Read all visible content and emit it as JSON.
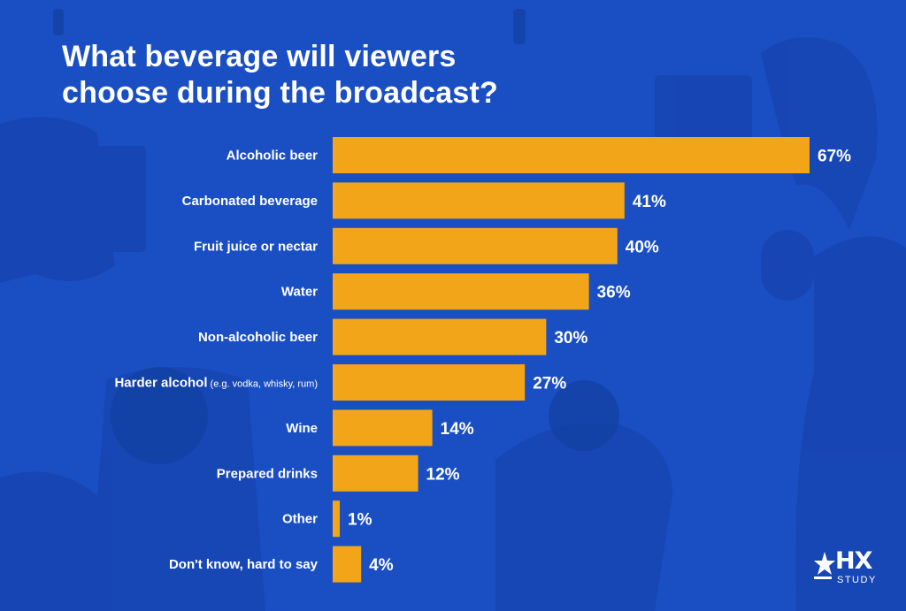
{
  "title_line1": "What beverage will viewers",
  "title_line2": "choose during the broadcast?",
  "colors": {
    "background": "#1a4fc4",
    "bar": "#f3a519",
    "text": "#ffffff"
  },
  "logo": {
    "icon": "hx-star-icon",
    "main": "HX",
    "sub": "STUDY"
  },
  "chart_data": {
    "type": "bar",
    "orientation": "horizontal",
    "categories": [
      "Alcoholic beer",
      "Carbonated beverage",
      "Fruit juice or nectar",
      "Water",
      "Non-alcoholic beer",
      "Harder alcohol",
      "Wine",
      "Prepared drinks",
      "Other",
      "Don't know, hard to say"
    ],
    "category_notes": [
      "",
      "",
      "",
      "",
      "",
      "(e.g. vodka, whisky, rum)",
      "",
      "",
      "",
      ""
    ],
    "values": [
      67,
      41,
      40,
      36,
      30,
      27,
      14,
      12,
      1,
      4
    ],
    "value_labels": [
      "67%",
      "41%",
      "40%",
      "36%",
      "30%",
      "27%",
      "14%",
      "12%",
      "1%",
      "4%"
    ],
    "unit": "%",
    "xlim": [
      0,
      67
    ],
    "grid": false,
    "legend": "none"
  }
}
